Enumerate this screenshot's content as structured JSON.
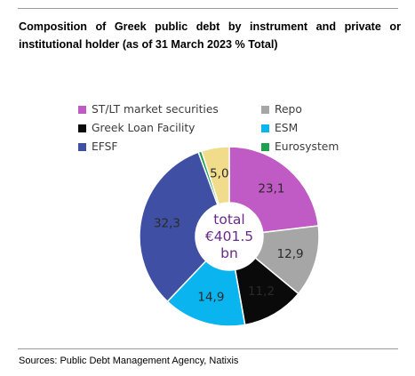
{
  "title": "Composition of Greek public debt by instrument and private or institutional holder (as of 31 March 2023 % Total)",
  "source": "Sources: Public Debt Management Agency, Natixis",
  "chart_data": {
    "type": "pie",
    "style": "donut",
    "legend_position": "top",
    "center_label": [
      "total",
      "€401.5",
      "bn"
    ],
    "center_label_color": "#6a2a8a",
    "slice_label_color": "#2a2a2a",
    "series": [
      {
        "name": "ST/LT market securities",
        "value": 23.1,
        "label": "23,1",
        "color": "#c05ac4"
      },
      {
        "name": "Repo",
        "value": 12.9,
        "label": "12,9",
        "color": "#a6a6a6"
      },
      {
        "name": "Greek Loan Facility",
        "value": 11.2,
        "label": "11,2",
        "color": "#0a0a0a"
      },
      {
        "name": "ESM",
        "value": 14.9,
        "label": "14,9",
        "color": "#0ab4ee"
      },
      {
        "name": "EFSF",
        "value": 32.3,
        "label": "32,3",
        "color": "#3f50a4"
      },
      {
        "name": "Eurosystem",
        "value": 0.6,
        "label": "",
        "color": "#1fa04f"
      },
      {
        "name": "",
        "value": 5.0,
        "label": "5,0",
        "color": "#f1dc8c"
      }
    ],
    "legend": [
      {
        "name": "ST/LT market securities",
        "color": "#c05ac4"
      },
      {
        "name": "Repo",
        "color": "#a6a6a6"
      },
      {
        "name": "Greek Loan Facility",
        "color": "#0a0a0a"
      },
      {
        "name": "ESM",
        "color": "#0ab4ee"
      },
      {
        "name": "EFSF",
        "color": "#3f50a4"
      },
      {
        "name": "Eurosystem",
        "color": "#1fa04f"
      }
    ]
  }
}
